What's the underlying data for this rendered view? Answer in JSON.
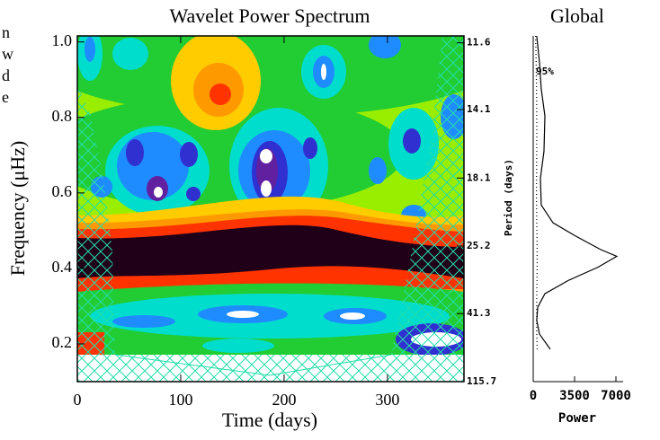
{
  "chart_data": [
    {
      "type": "contour",
      "title": "Wavelet Power Spectrum",
      "x_label": "Time (days)",
      "y_label": "Frequency (μHz)",
      "y2_label": "Period (days)",
      "xlim": [
        0,
        374
      ],
      "xticks": [
        0,
        100,
        200,
        300
      ],
      "ylim": [
        0.1,
        1.016
      ],
      "yticks": [
        0.2,
        0.4,
        0.6,
        0.8,
        {
          "value": 1,
          "label": "1.0"
        }
      ],
      "y2ticks": [
        11.6,
        14.1,
        18.1,
        25.2,
        41.3,
        115.7
      ],
      "left_text_fragments": [
        "n",
        "w",
        "d",
        "e"
      ]
    },
    {
      "type": "line",
      "title": "Global",
      "x_label": "Power",
      "xlim": [
        0,
        7000
      ],
      "xticks": [
        0,
        3500,
        7000
      ],
      "ylim": [
        0.1,
        1.016
      ],
      "annotation": "95%",
      "y": [
        1.016,
        0.946,
        0.875,
        0.804,
        0.71,
        0.639,
        0.568,
        0.521,
        0.486,
        0.45,
        0.432,
        0.403,
        0.368,
        0.333,
        0.297,
        0.262,
        0.226,
        0.186
      ],
      "series": [
        {
          "name": "global",
          "color": "#000000",
          "values": [
            300,
            530,
            680,
            990,
            910,
            610,
            680,
            1670,
            3570,
            5700,
            7070,
            5470,
            2960,
            990,
            380,
            300,
            530,
            1440
          ]
        },
        {
          "name": "95%",
          "color": "#000000",
          "values": [
            200,
            250,
            280,
            300,
            300,
            280,
            280,
            300,
            320,
            330,
            330,
            330,
            320,
            300,
            290,
            290,
            300,
            330
          ]
        }
      ]
    }
  ]
}
